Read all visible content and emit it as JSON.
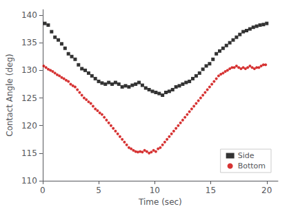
{
  "chart_data": {
    "type": "scatter",
    "xlabel": "Time (sec)",
    "ylabel": "Contact Angle (deg)",
    "xlim": [
      0,
      21
    ],
    "ylim": [
      110,
      141
    ],
    "xticks": [
      0,
      5,
      10,
      15,
      20
    ],
    "yticks": [
      110,
      115,
      120,
      125,
      130,
      135,
      140
    ],
    "grid": false,
    "legend": "lower right",
    "series": [
      {
        "name": "Side",
        "color": "#000000",
        "marker": "square",
        "x": [
          0.2,
          0.5,
          0.8,
          1.1,
          1.4,
          1.7,
          2.0,
          2.3,
          2.6,
          2.9,
          3.2,
          3.5,
          3.8,
          4.1,
          4.4,
          4.7,
          5.0,
          5.3,
          5.6,
          5.9,
          6.2,
          6.5,
          6.8,
          7.1,
          7.4,
          7.7,
          8.0,
          8.3,
          8.6,
          8.9,
          9.2,
          9.5,
          9.8,
          10.1,
          10.4,
          10.7,
          11.0,
          11.3,
          11.6,
          11.9,
          12.2,
          12.5,
          12.8,
          13.1,
          13.4,
          13.7,
          14.0,
          14.3,
          14.6,
          14.9,
          15.2,
          15.5,
          15.8,
          16.1,
          16.4,
          16.7,
          17.0,
          17.3,
          17.6,
          17.9,
          18.2,
          18.5,
          18.8,
          19.1,
          19.4,
          19.7,
          20.0
        ],
        "values": [
          138.5,
          138.2,
          137.0,
          136.0,
          135.5,
          134.8,
          134.0,
          133.0,
          132.5,
          132.0,
          131.0,
          130.3,
          130.0,
          129.5,
          129.0,
          128.5,
          128.0,
          127.7,
          127.5,
          127.8,
          127.5,
          127.8,
          127.5,
          127.0,
          127.2,
          127.0,
          127.3,
          127.5,
          127.8,
          127.3,
          126.8,
          126.5,
          126.2,
          126.0,
          125.8,
          125.5,
          126.0,
          126.2,
          126.5,
          127.0,
          127.2,
          127.5,
          127.8,
          128.0,
          128.5,
          129.0,
          129.5,
          130.2,
          130.8,
          131.2,
          132.0,
          133.0,
          133.5,
          134.0,
          134.5,
          135.0,
          135.5,
          136.0,
          136.5,
          137.0,
          137.2,
          137.5,
          137.8,
          138.0,
          138.2,
          138.3,
          138.5
        ]
      },
      {
        "name": "Bottom",
        "color": "#cc0000",
        "marker": "circle",
        "x": [
          0.1,
          0.3,
          0.5,
          0.7,
          0.9,
          1.1,
          1.3,
          1.5,
          1.7,
          1.9,
          2.1,
          2.3,
          2.5,
          2.7,
          2.9,
          3.1,
          3.3,
          3.5,
          3.7,
          3.9,
          4.1,
          4.3,
          4.5,
          4.7,
          4.9,
          5.1,
          5.3,
          5.5,
          5.7,
          5.9,
          6.1,
          6.3,
          6.5,
          6.7,
          6.9,
          7.1,
          7.3,
          7.5,
          7.7,
          7.9,
          8.1,
          8.3,
          8.5,
          8.7,
          8.9,
          9.1,
          9.3,
          9.5,
          9.7,
          9.9,
          10.1,
          10.3,
          10.5,
          10.7,
          10.9,
          11.1,
          11.3,
          11.5,
          11.7,
          11.9,
          12.1,
          12.3,
          12.5,
          12.7,
          12.9,
          13.1,
          13.3,
          13.5,
          13.7,
          13.9,
          14.1,
          14.3,
          14.5,
          14.7,
          14.9,
          15.1,
          15.3,
          15.5,
          15.7,
          15.9,
          16.1,
          16.3,
          16.5,
          16.7,
          16.9,
          17.1,
          17.3,
          17.5,
          17.7,
          17.9,
          18.1,
          18.3,
          18.5,
          18.7,
          18.9,
          19.1,
          19.3,
          19.5,
          19.7,
          19.9
        ],
        "values": [
          130.8,
          130.5,
          130.2,
          130.0,
          129.8,
          129.5,
          129.2,
          129.0,
          128.7,
          128.5,
          128.2,
          128.0,
          127.5,
          127.2,
          127.0,
          126.5,
          126.0,
          125.5,
          125.0,
          124.7,
          124.3,
          124.0,
          123.5,
          123.0,
          122.7,
          122.3,
          122.0,
          121.5,
          121.0,
          120.5,
          120.0,
          119.5,
          119.0,
          118.5,
          118.0,
          117.5,
          117.0,
          116.5,
          116.0,
          115.8,
          115.5,
          115.3,
          115.2,
          115.3,
          115.2,
          115.5,
          115.3,
          115.0,
          115.2,
          115.5,
          115.3,
          115.8,
          116.0,
          116.5,
          117.0,
          117.5,
          118.0,
          118.5,
          119.0,
          119.5,
          120.0,
          120.5,
          121.0,
          121.5,
          122.0,
          122.5,
          123.0,
          123.5,
          124.0,
          124.5,
          125.0,
          125.5,
          126.0,
          126.5,
          127.0,
          127.5,
          128.0,
          128.5,
          129.0,
          129.3,
          129.5,
          129.8,
          130.0,
          130.3,
          130.5,
          130.5,
          130.8,
          130.5,
          130.3,
          130.5,
          130.3,
          130.5,
          130.8,
          130.5,
          130.3,
          130.5,
          130.5,
          130.8,
          131.0,
          131.0
        ]
      }
    ]
  }
}
